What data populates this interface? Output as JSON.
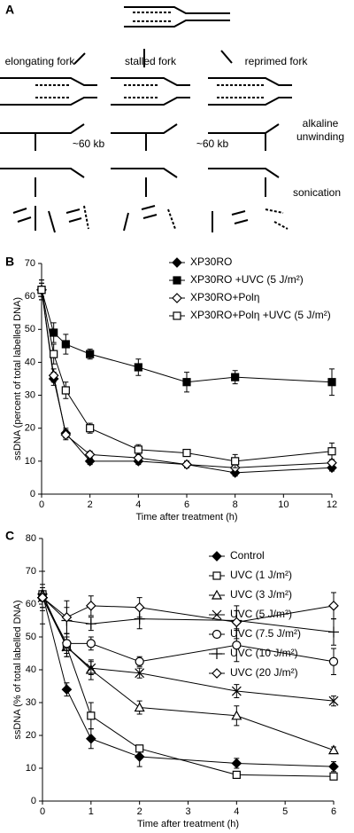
{
  "panel_a": {
    "panel_label": "A",
    "labels": [
      "elongating fork",
      "stalled fork",
      "reprimed fork",
      "~60 kb",
      "~60 kb",
      "alkaline",
      "unwinding",
      "sonication"
    ]
  },
  "chart_data": [
    {
      "type": "line",
      "panel_label": "B",
      "xlabel": "Time after treatment (h)",
      "ylabel": "ssDNA (percent of total labelled DNA)",
      "x": [
        0,
        0.5,
        1,
        2,
        4,
        6,
        8,
        12
      ],
      "xlim": [
        0,
        12
      ],
      "xticks": [
        0,
        2,
        4,
        6,
        8,
        10,
        12
      ],
      "ylim": [
        0,
        70
      ],
      "yticks": [
        0,
        10,
        20,
        30,
        40,
        50,
        60,
        70
      ],
      "legend": "upper right",
      "series": [
        {
          "name": "XP30RO",
          "color": "#000000",
          "marker": "diamond-filled",
          "values": [
            62,
            35,
            18.5,
            10,
            10,
            9,
            6.5,
            8
          ],
          "errors": [
            2,
            2,
            1.5,
            1,
            1,
            1,
            1,
            1
          ]
        },
        {
          "name": "XP30RO +UVC (5 J/m²)",
          "color": "#000000",
          "marker": "square-filled",
          "values": [
            62,
            49,
            45.5,
            42.5,
            38.5,
            34,
            35.5,
            34
          ],
          "errors": [
            3,
            3,
            3,
            1.5,
            2.5,
            3,
            2,
            4
          ]
        },
        {
          "name": "XP30RO+Polη",
          "color": "#000000",
          "marker": "diamond-open",
          "values": [
            62,
            36,
            18,
            12,
            11,
            9,
            8,
            9.5
          ],
          "errors": [
            2,
            2,
            1.5,
            1,
            1,
            1,
            1,
            1
          ]
        },
        {
          "name": "XP30RO+Polη +UVC (5 J/m²)",
          "color": "#000000",
          "marker": "square-open",
          "values": [
            62,
            42.5,
            31.5,
            20,
            13.5,
            12.5,
            10,
            13
          ],
          "errors": [
            3,
            3,
            2.5,
            1.5,
            1.5,
            1,
            2,
            2.5
          ]
        }
      ]
    },
    {
      "type": "line",
      "panel_label": "C",
      "xlabel": "Time after treatment (h)",
      "ylabel": "ssDNA (% of total labelled DNA)",
      "x": [
        0,
        0.5,
        1,
        2,
        4,
        6
      ],
      "xlim": [
        0,
        6
      ],
      "xticks": [
        0,
        1,
        2,
        3,
        4,
        5,
        6
      ],
      "ylim": [
        0,
        80
      ],
      "yticks": [
        0,
        10,
        20,
        30,
        40,
        50,
        60,
        70,
        80
      ],
      "legend": "upper right",
      "series": [
        {
          "name": "Control",
          "color": "#000000",
          "marker": "diamond-filled",
          "values": [
            63,
            34,
            19,
            13.5,
            11.5,
            10.5
          ],
          "errors": [
            2,
            2,
            3,
            3,
            1.5,
            1.5
          ]
        },
        {
          "name": "UVC (1 J/m²)",
          "color": "#000000",
          "marker": "square-open",
          "values": [
            63,
            47,
            26,
            16,
            8,
            7.5
          ],
          "errors": [
            2,
            2,
            4,
            1,
            1,
            1
          ]
        },
        {
          "name": "UVC (3 J/m²)",
          "color": "#000000",
          "marker": "triangle-open",
          "values": [
            63,
            47,
            40,
            28.5,
            26,
            15.5
          ],
          "errors": [
            2,
            3,
            3,
            2,
            3,
            1
          ]
        },
        {
          "name": "UVC (5 J/m²)",
          "color": "#000000",
          "marker": "x",
          "values": [
            62,
            47,
            40.5,
            39,
            33.5,
            30.5
          ],
          "errors": [
            3,
            3,
            2,
            1.5,
            2,
            1.5
          ]
        },
        {
          "name": "UVC (7.5 J/m²)",
          "color": "#000000",
          "marker": "circle-open",
          "values": [
            62,
            48,
            48,
            42.5,
            47.5,
            42.5
          ],
          "errors": [
            3,
            3,
            2,
            1.5,
            5,
            4
          ]
        },
        {
          "name": "UVC (10 J/m²)",
          "color": "#000000",
          "marker": "plus",
          "values": [
            62,
            55,
            54,
            55.5,
            55,
            51.5
          ],
          "errors": [
            8,
            4,
            2,
            3,
            3,
            4
          ]
        },
        {
          "name": "UVC (20 J/m²)",
          "color": "#000000",
          "marker": "diamond-open",
          "values": [
            62,
            56,
            59.5,
            59,
            54.5,
            59.5
          ],
          "errors": [
            4,
            5,
            3,
            3,
            5,
            4
          ]
        }
      ]
    }
  ]
}
